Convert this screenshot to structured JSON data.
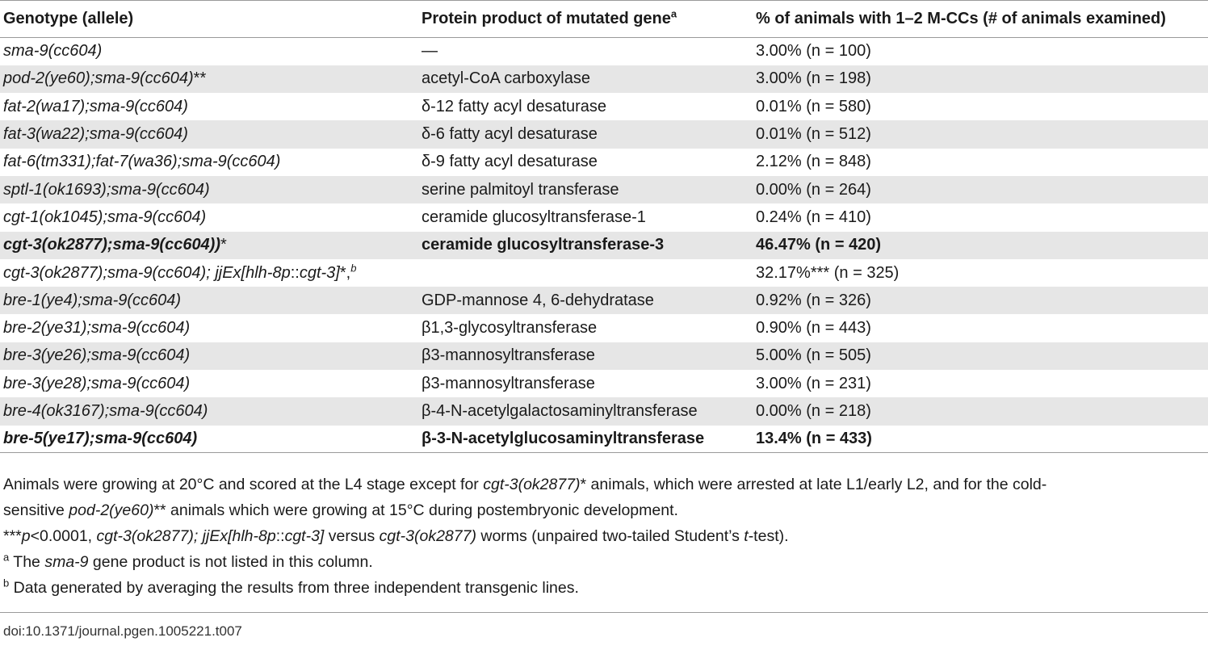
{
  "table": {
    "headers": {
      "genotype": "Genotype (allele)",
      "protein": "Protein product of mutated gene",
      "protein_sup": "a",
      "percent": "% of animals with 1–2 M-CCs (# of animals examined)"
    },
    "rows": [
      {
        "genotype": "sma-9(cc604)",
        "protein": "—",
        "percent": "3.00% (n = 100)"
      },
      {
        "genotype": "pod-2(ye60);sma-9(cc604)",
        "genotype_suffix": "**",
        "protein": "acetyl-CoA carboxylase",
        "percent": "3.00% (n = 198)"
      },
      {
        "genotype": "fat-2(wa17);sma-9(cc604)",
        "protein": "δ-12 fatty acyl desaturase",
        "percent": "0.01% (n = 580)"
      },
      {
        "genotype": "fat-3(wa22);sma-9(cc604)",
        "protein": "δ-6 fatty acyl desaturase",
        "percent": "0.01% (n = 512)"
      },
      {
        "genotype": "fat-6(tm331);fat-7(wa36);sma-9(cc604)",
        "protein": "δ-9 fatty acyl desaturase",
        "percent": "2.12% (n = 848)"
      },
      {
        "genotype": "sptl-1(ok1693);sma-9(cc604)",
        "protein": "serine palmitoyl transferase",
        "percent": "0.00% (n = 264)"
      },
      {
        "genotype": "cgt-1(ok1045);sma-9(cc604)",
        "protein": "ceramide glucosyltransferase-1",
        "percent": "0.24% (n = 410)"
      },
      {
        "genotype": "cgt-3(ok2877);sma-9(cc604))",
        "genotype_suffix": "*",
        "protein": "ceramide glucosyltransferase-3",
        "percent": "46.47% (n = 420)",
        "bold": true
      },
      {
        "genotype_parts": [
          "cgt-3(ok2877);sma-9(cc604); jjEx[hlh-8p",
          "::",
          "cgt-3]",
          "*,",
          "b"
        ],
        "protein": "",
        "percent": "32.17%*** (n = 325)"
      },
      {
        "genotype": "bre-1(ye4);sma-9(cc604)",
        "protein": "GDP-mannose 4, 6-dehydratase",
        "percent": "0.92% (n = 326)"
      },
      {
        "genotype": "bre-2(ye31);sma-9(cc604)",
        "protein": "β1,3-glycosyltransferase",
        "percent": "0.90% (n = 443)"
      },
      {
        "genotype": "bre-3(ye26);sma-9(cc604)",
        "protein": "β3-mannosyltransferase",
        "percent": "5.00% (n = 505)"
      },
      {
        "genotype": "bre-3(ye28);sma-9(cc604)",
        "protein": "β3-mannosyltransferase",
        "percent": "3.00% (n = 231)"
      },
      {
        "genotype": "bre-4(ok3167);sma-9(cc604)",
        "protein": "β-4-N-acetylgalactosaminyltransferase",
        "percent": "0.00% (n = 218)"
      },
      {
        "genotype": "bre-5(ye17);sma-9(cc604)",
        "protein": "β-3-N-acetylglucosaminyltransferase",
        "percent": "13.4% (n = 433)",
        "bold": true
      }
    ]
  },
  "notes": {
    "n1": {
      "a": "Animals were growing at 20°C and scored at the L4 stage except for ",
      "b": "cgt-3(ok2877)",
      "c": "* animals, which were arrested at late L1/early L2, and for the cold-",
      "d": "sensitive ",
      "e": "pod-2(ye60)",
      "f": "** animals which were growing at 15°C during postembryonic development."
    },
    "n2": {
      "a": "***",
      "b": "p",
      "c": "<0.0001, ",
      "d": "cgt-3(ok2877); jjEx[hlh-8p",
      "e": "::",
      "f": "cgt-3]",
      "g": " versus ",
      "h": "cgt-3(ok2877)",
      "i": " worms (unpaired two-tailed Student’s ",
      "j": "t",
      "k": "-test)."
    },
    "n3": {
      "sup": "a",
      "a": " The ",
      "b": "sma-9",
      "c": " gene product is not listed in this column."
    },
    "n4": {
      "sup": "b",
      "a": " Data generated by averaging the results from three independent transgenic lines."
    }
  },
  "doi": "doi:10.1371/journal.pgen.1005221.t007"
}
